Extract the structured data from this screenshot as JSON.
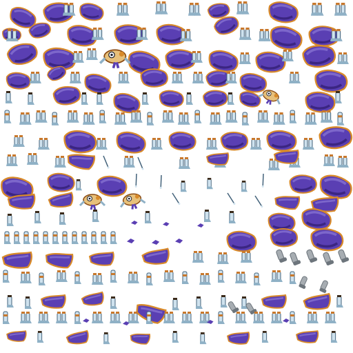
{
  "atlas": {
    "kind": "sprite texture atlas",
    "background": "#ffffff",
    "palette": {
      "cape_purple": "#5a3fb3",
      "cape_purple_dark": "#2d1b6e",
      "cape_purple_light": "#8b79d6",
      "cape_trim_gold": "#d88a2a",
      "cape_trim_dark": "#8a4a12",
      "boot_light": "#cfe2ee",
      "boot_mid": "#8fb1c6",
      "boot_dark": "#43627a",
      "boot_band_orange": "#c8782c",
      "boot_band_dark": "#3a2a1a",
      "gray_piece": "#a7adb2",
      "gray_piece_dark": "#6d757c",
      "shadow": "#1a1f2a"
    },
    "sprite_types": [
      "cape-fragment",
      "boot-pair",
      "single-boot",
      "gauntlet-piece",
      "gray-boot",
      "character-pose",
      "staff-stick",
      "debris-chip"
    ]
  }
}
